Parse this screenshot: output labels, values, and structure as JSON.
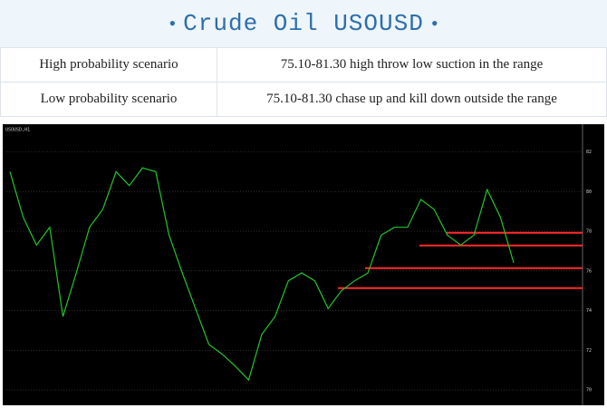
{
  "header": {
    "title": "Crude Oil USOUSD"
  },
  "table": {
    "rows": [
      [
        "High probability scenario",
        "75.10-81.30 high throw low suction in the range"
      ],
      [
        "Low  probability  scenario",
        "75.10-81.30 chase up and kill down outside the range"
      ]
    ]
  },
  "chart_data": {
    "type": "line",
    "title": "USOUSD,H1",
    "values": [
      81.0,
      78.7,
      77.3,
      78.2,
      73.7,
      75.9,
      78.2,
      79.1,
      81.0,
      80.3,
      81.2,
      81.0,
      77.8,
      75.9,
      74.1,
      72.3,
      71.8,
      71.2,
      70.5,
      72.8,
      73.7,
      75.5,
      75.9,
      75.5,
      74.1,
      75.0,
      75.5,
      75.9,
      77.8,
      78.2,
      78.2,
      79.6,
      79.1,
      77.8,
      77.3,
      77.8,
      80.1,
      78.7,
      76.4
    ],
    "color": "#22c42b",
    "levels": [
      77.92,
      77.28,
      76.14,
      75.13
    ],
    "level_color": "#ff2a2a",
    "ylim": [
      69.68,
      82.94
    ],
    "yticks": [
      70,
      72,
      74,
      76,
      78,
      80,
      82
    ]
  }
}
